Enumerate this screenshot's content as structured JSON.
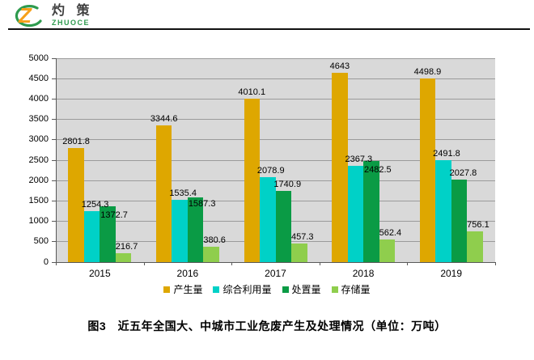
{
  "logo": {
    "cn": "灼 策",
    "en": "ZHUOCE",
    "orange": "#F6A01A",
    "green": "#2E9B4E"
  },
  "caption": "图3　近五年全国大、中城市工业危废产生及处理情况（单位：万吨）",
  "chart_data": {
    "type": "bar",
    "title": "",
    "xlabel": "",
    "ylabel": "",
    "categories": [
      "2015",
      "2016",
      "2017",
      "2018",
      "2019"
    ],
    "series": [
      {
        "name": "产生量",
        "color": "#DEA700",
        "values": [
          2801.8,
          3344.6,
          4010.1,
          4643,
          4498.9
        ]
      },
      {
        "name": "综合利用量",
        "color": "#00D1C7",
        "values": [
          1254.3,
          1535.4,
          2078.9,
          2367.3,
          2491.8
        ]
      },
      {
        "name": "处置量",
        "color": "#0A9B45",
        "values": [
          1372.7,
          1587.3,
          1740.9,
          2482.5,
          2027.8
        ]
      },
      {
        "name": "存储量",
        "color": "#8FCE4D",
        "values": [
          216.7,
          380.6,
          457.3,
          562.4,
          756.1
        ]
      }
    ],
    "ylim": [
      0,
      5000
    ],
    "y_tick_step": 500,
    "y_ticks": [
      0,
      500,
      1000,
      1500,
      2000,
      2500,
      3000,
      3500,
      4000,
      4500,
      5000
    ],
    "grid": true,
    "data_labels": true,
    "legend_position": "bottom",
    "plot_bg_color": "#D9D9D9",
    "grid_color": "#9B9B9B",
    "axis_color": "#595959",
    "label_color": "#000000"
  }
}
